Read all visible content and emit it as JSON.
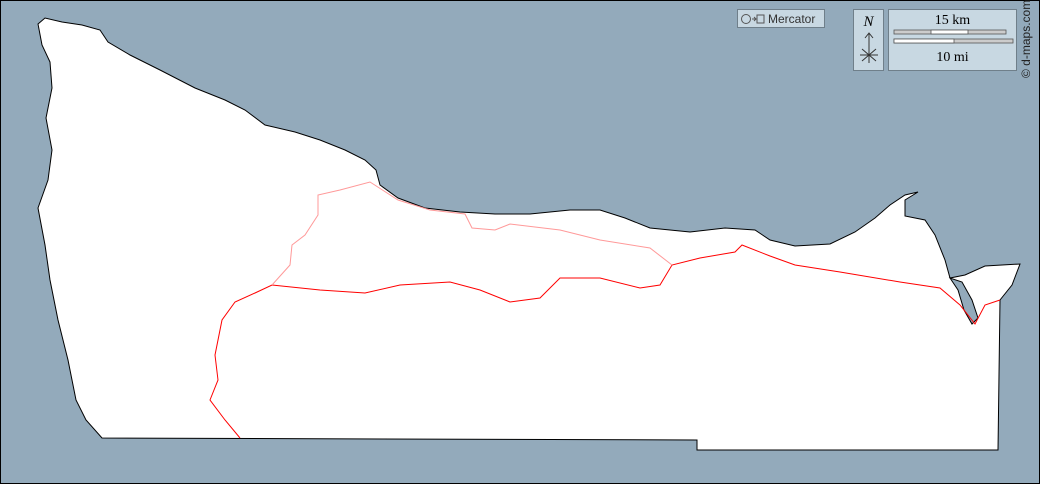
{
  "map": {
    "colors": {
      "water": "#93aabb",
      "land": "#ffffff",
      "border_major": "#ff0000",
      "border_minor": "#ff9999",
      "coast": "#000000"
    },
    "projection_label": "Mercator",
    "north_label": "N",
    "scale_km": "15 km",
    "scale_mi": "10 mi",
    "credit": "© d-maps.com"
  }
}
